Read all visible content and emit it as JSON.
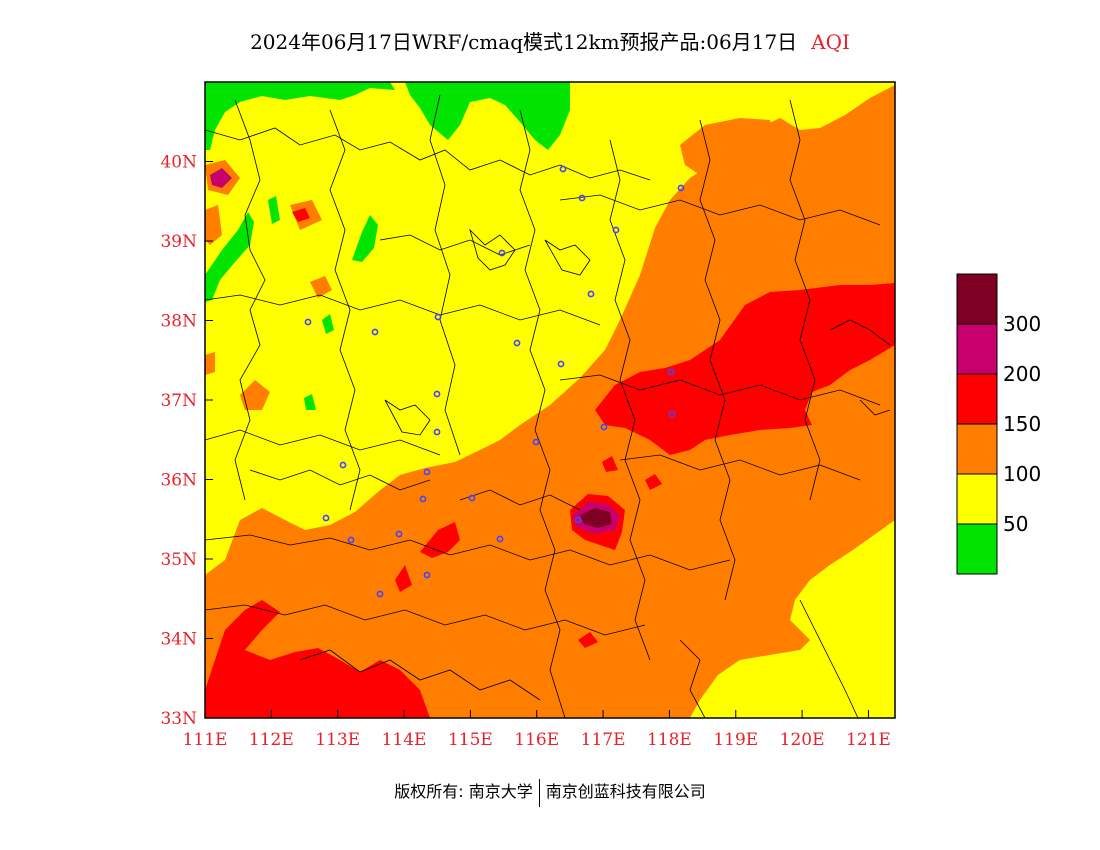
{
  "title": {
    "main": "2024年06月17日WRF/cmaq模式12km预报产品:06月17日",
    "variable": "AQI"
  },
  "map": {
    "lon_range": [
      111,
      121.4
    ],
    "lat_range": [
      33,
      41
    ],
    "lat_ticks": [
      "40N",
      "39N",
      "38N",
      "37N",
      "36N",
      "35N",
      "34N",
      "33N"
    ],
    "lon_ticks": [
      "111E",
      "112E",
      "113E",
      "114E",
      "115E",
      "116E",
      "117E",
      "118E",
      "119E",
      "120E",
      "121E"
    ],
    "region_colors": {
      "good": "#00e400",
      "moderate": "#ffff00",
      "usg": "#ff7e00",
      "unhealthy": "#ff0000",
      "very_unhealthy": "#c8006e",
      "hazardous": "#7e0023"
    }
  },
  "legend": {
    "colors": [
      "#7e0023",
      "#c8006e",
      "#ff0000",
      "#ff7e00",
      "#ffff00",
      "#00e400"
    ],
    "labels": [
      "300",
      "200",
      "150",
      "100",
      "50"
    ]
  },
  "footer": {
    "left": "版权所有: 南京大学",
    "right": "南京创蓝科技有限公司"
  }
}
